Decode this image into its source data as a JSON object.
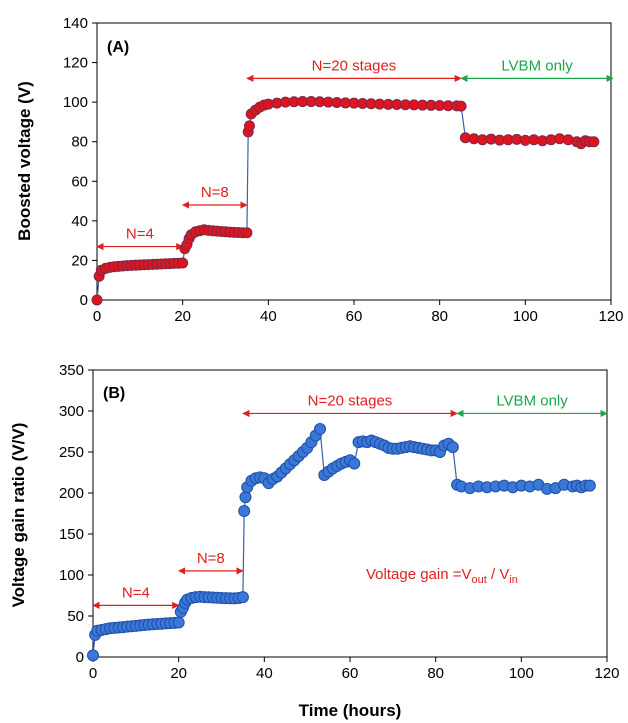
{
  "colors": {
    "marker_a_fill": "#e0141e",
    "marker_a_edge": "#7a2a4a",
    "line": "#3a5fb0",
    "marker_b_fill": "#3a78d8",
    "marker_b_edge": "#1f4fa8",
    "red_annot": "#e02020",
    "green_annot": "#1aa84a",
    "axis": "#000000"
  },
  "chart_data": [
    {
      "type": "scatter",
      "panel_label": "(A)",
      "title": "",
      "xlabel": "",
      "ylabel": "Boosted voltage (V)",
      "xlim": [
        0,
        120
      ],
      "ylim": [
        0,
        140
      ],
      "x_ticks": [
        "0",
        "20",
        "40",
        "60",
        "80",
        "100",
        "120"
      ],
      "y_ticks": [
        "0",
        "20",
        "40",
        "60",
        "80",
        "100",
        "120",
        "140"
      ],
      "annotations": [
        {
          "text": "N=4",
          "x_from": 0,
          "x_to": 20,
          "y": 27,
          "color": "red"
        },
        {
          "text": "N=8",
          "x_from": 20,
          "x_to": 35,
          "y": 48,
          "color": "red"
        },
        {
          "text": "N=20 stages",
          "x_from": 35,
          "x_to": 85,
          "y": 112,
          "color": "red"
        },
        {
          "text": "LVBM only",
          "x_from": 85,
          "x_to": 121,
          "y": 112,
          "color": "green"
        }
      ],
      "series": [
        {
          "x": [
            0,
            0.5,
            1,
            2,
            3,
            4,
            5,
            6,
            7,
            8,
            9,
            10,
            11,
            12,
            13,
            14,
            15,
            16,
            17,
            18,
            19,
            20,
            20.5,
            21,
            21.5,
            22,
            23,
            24,
            25,
            26,
            27,
            28,
            29,
            30,
            31,
            32,
            33,
            34,
            35,
            35.3,
            35.6,
            36,
            37,
            38,
            39,
            40,
            42,
            44,
            46,
            48,
            50,
            52,
            54,
            56,
            58,
            60,
            62,
            64,
            66,
            68,
            70,
            72,
            74,
            76,
            78,
            80,
            82,
            84,
            85,
            86,
            88,
            90,
            92,
            94,
            96,
            98,
            100,
            102,
            104,
            106,
            108,
            110,
            112,
            113,
            114,
            115,
            116
          ],
          "y": [
            0,
            12,
            15,
            16,
            16.5,
            16.8,
            17,
            17.2,
            17.4,
            17.5,
            17.6,
            17.7,
            17.8,
            17.9,
            18,
            18.1,
            18.2,
            18.3,
            18.4,
            18.5,
            18.6,
            18.7,
            26,
            28,
            31,
            33,
            34.5,
            35,
            35.5,
            35.2,
            35,
            34.8,
            34.6,
            34.5,
            34.3,
            34.2,
            34.1,
            34,
            34,
            85,
            88,
            94,
            96,
            97.5,
            98.5,
            99,
            99.5,
            100,
            100.2,
            100.3,
            100.3,
            100.2,
            100,
            99.8,
            99.6,
            99.5,
            99.3,
            99.2,
            99,
            98.9,
            98.8,
            98.7,
            98.6,
            98.5,
            98.4,
            98.3,
            98.2,
            98.1,
            98,
            82,
            81.5,
            81,
            81.3,
            80.8,
            81,
            81.2,
            80.7,
            81,
            80.5,
            81,
            81.5,
            81,
            80,
            79,
            80.5,
            80,
            80
          ]
        }
      ]
    },
    {
      "type": "scatter",
      "panel_label": "(B)",
      "title": "",
      "xlabel": "Time (hours)",
      "ylabel": "Voltage gain ratio (V/V)",
      "xlim": [
        0,
        120
      ],
      "ylim": [
        0,
        350
      ],
      "x_ticks": [
        "0",
        "20",
        "40",
        "60",
        "80",
        "100",
        "120"
      ],
      "y_ticks": [
        "0",
        "50",
        "100",
        "150",
        "200",
        "250",
        "300",
        "350"
      ],
      "formula": {
        "prefix": "Voltage gain =V",
        "sub1": "out",
        "mid": " / V",
        "sub2": "in"
      },
      "annotations": [
        {
          "text": "N=4",
          "x_from": 0,
          "x_to": 20,
          "y": 63,
          "color": "red"
        },
        {
          "text": "N=8",
          "x_from": 20,
          "x_to": 35,
          "y": 105,
          "color": "red"
        },
        {
          "text": "N=20 stages",
          "x_from": 35,
          "x_to": 85,
          "y": 297,
          "color": "red"
        },
        {
          "text": "LVBM only",
          "x_from": 85,
          "x_to": 120,
          "y": 297,
          "color": "green"
        }
      ],
      "series": [
        {
          "x": [
            0,
            0.5,
            1,
            2,
            3,
            4,
            5,
            6,
            7,
            8,
            9,
            10,
            11,
            12,
            13,
            14,
            15,
            16,
            17,
            18,
            19,
            20,
            20.5,
            21,
            21.5,
            22,
            23,
            24,
            25,
            26,
            27,
            28,
            29,
            30,
            31,
            32,
            33,
            34,
            35,
            35.3,
            35.6,
            36,
            37,
            38,
            39,
            40,
            41,
            42,
            43,
            44,
            45,
            46,
            47,
            48,
            49,
            50,
            51,
            52,
            53,
            54,
            55,
            56,
            57,
            58,
            59,
            60,
            61,
            62,
            63,
            64,
            65,
            66,
            67,
            68,
            69,
            70,
            71,
            72,
            73,
            74,
            75,
            76,
            77,
            78,
            79,
            80,
            81,
            82,
            83,
            84,
            85,
            86,
            88,
            90,
            92,
            94,
            96,
            98,
            100,
            102,
            104,
            106,
            108,
            110,
            112,
            113,
            114,
            115,
            116
          ],
          "y": [
            2,
            27,
            32,
            33,
            34,
            35,
            35.5,
            36,
            36.5,
            37,
            37.5,
            38,
            38.5,
            39,
            39.5,
            40,
            40.3,
            40.6,
            41,
            41.3,
            41.6,
            42,
            55,
            60,
            66,
            70,
            72,
            73,
            73.5,
            73,
            72.8,
            72.5,
            72.2,
            72,
            71.8,
            71.6,
            71.5,
            72,
            73,
            178,
            195,
            207,
            215,
            218,
            219,
            218,
            212,
            217,
            220,
            225,
            230,
            235,
            240,
            245,
            250,
            255,
            262,
            270,
            278,
            222,
            226,
            230,
            233,
            236,
            238,
            240,
            236,
            262,
            263,
            262,
            264,
            262,
            260,
            258,
            255,
            254,
            254,
            255,
            256,
            257,
            256,
            255,
            254,
            253,
            252,
            252,
            250,
            258,
            260,
            256,
            210,
            208,
            206,
            208,
            207,
            208,
            209,
            207,
            209,
            208,
            210,
            205,
            206,
            210,
            208,
            209,
            207,
            209,
            209
          ]
        }
      ]
    }
  ]
}
